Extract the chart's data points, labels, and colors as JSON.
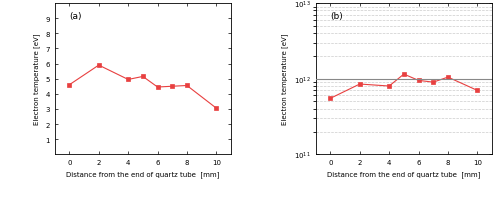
{
  "a_x": [
    0,
    2,
    4,
    5,
    6,
    7,
    8,
    10
  ],
  "a_y": [
    4.6,
    5.9,
    4.95,
    5.15,
    4.45,
    4.5,
    4.55,
    3.05
  ],
  "b_x": [
    0,
    2,
    4,
    5,
    6,
    7,
    8,
    10
  ],
  "b_y": [
    550000000000.0,
    850000000000.0,
    800000000000.0,
    1150000000000.0,
    950000000000.0,
    900000000000.0,
    1050000000000.0,
    700000000000.0
  ],
  "b_hline": 1000000000000.0,
  "line_color": "#e84040",
  "hline_color": "#888888",
  "a_ylabel": "Electron temperature [eV]",
  "b_ylabel": "Electron temperature [eV]",
  "xlabel": "Distance from the end of quartz tube  [mm]",
  "a_label": "(a)",
  "b_label": "(b)",
  "a_ylim": [
    0,
    10
  ],
  "a_yticks": [
    1,
    2,
    3,
    4,
    5,
    6,
    7,
    8,
    9
  ],
  "b_ylim_log": [
    100000000000.0,
    10000000000000.0
  ],
  "a_xticks": [
    0,
    2,
    4,
    6,
    8,
    10
  ],
  "b_xticks": [
    0,
    2,
    4,
    6,
    8,
    10
  ],
  "grid_color": "#cccccc",
  "marker_size": 3.0,
  "line_width": 0.8,
  "tick_labelsize": 5.0,
  "axis_labelsize": 5.0,
  "label_fontsize": 6.5
}
